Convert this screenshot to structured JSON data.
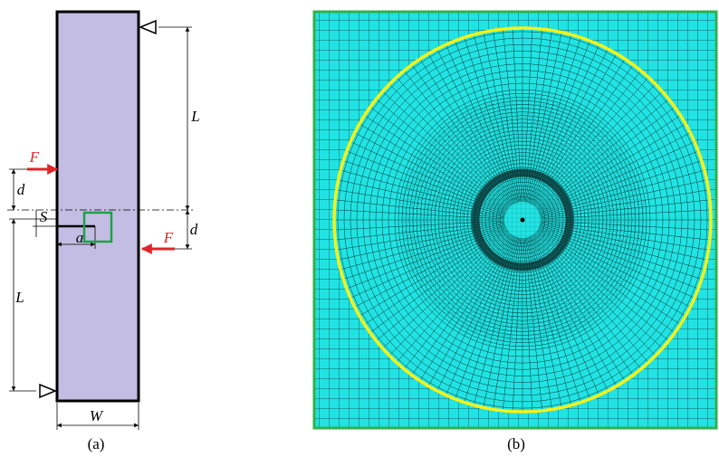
{
  "panel_a": {
    "force_top": "F",
    "force_bottom": "F",
    "length_right": "L",
    "length_left": "L",
    "offset_right": "d",
    "offset_left": "d",
    "crack_offset": "S",
    "crack_length": "a",
    "width": "W"
  },
  "captions": [
    "(a)",
    "(b)"
  ]
}
